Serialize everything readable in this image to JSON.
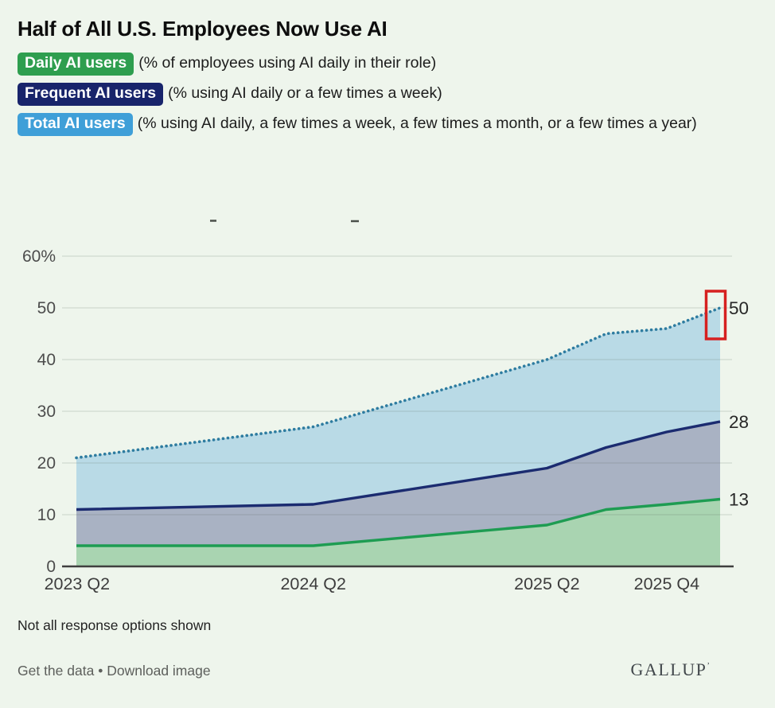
{
  "header": {
    "title": "Half of All U.S. Employees Now Use AI",
    "legend": [
      {
        "badge": "Daily AI users",
        "badge_color": "#2E9E4F",
        "description": "(% of employees using AI daily in their role)"
      },
      {
        "badge": "Frequent AI users",
        "badge_color": "#18246B",
        "description": "(% using AI daily or a few times a week)"
      },
      {
        "badge": "Total AI users",
        "badge_color": "#3F9FD8",
        "description": "(% using AI daily, a few times a week, a few times a month, or a few times a year)"
      }
    ]
  },
  "chart_data": {
    "type": "area",
    "title": "Half of All U.S. Employees Now Use AI",
    "x_tick_labels": [
      "2023 Q2",
      "2024 Q2",
      "2025 Q2",
      "2025 Q4"
    ],
    "y_ticks": [
      {
        "v": 0,
        "label": "0"
      },
      {
        "v": 10,
        "label": "10"
      },
      {
        "v": 20,
        "label": "20"
      },
      {
        "v": 30,
        "label": "30"
      },
      {
        "v": 40,
        "label": "40"
      },
      {
        "v": 50,
        "label": "50"
      },
      {
        "v": 60,
        "label": "60%"
      }
    ],
    "ylim": [
      0,
      60
    ],
    "grid": true,
    "legend_position": "top-badges",
    "series": [
      {
        "name": "Total AI users",
        "style": "dotted",
        "line_color": "#2E7CA0",
        "fill_color": "#B9DAE6",
        "values": [
          21,
          27,
          40,
          45,
          46,
          50
        ],
        "end_label": "50"
      },
      {
        "name": "Frequent AI users",
        "style": "solid",
        "line_color": "#1B2B70",
        "fill_color": "#A9B2C3",
        "values": [
          11,
          12,
          19,
          23,
          26,
          28
        ],
        "end_label": "28"
      },
      {
        "name": "Daily AI users",
        "style": "solid",
        "line_color": "#1E9C52",
        "fill_color": "#A9D4B1",
        "values": [
          4,
          4,
          8,
          11,
          12,
          13
        ],
        "end_label": "13"
      }
    ],
    "annotation": {
      "type": "highlight-box",
      "target": "last point of Total AI users",
      "value": 50,
      "color": "#D62020"
    }
  },
  "footnote": "Not all response options shown",
  "footer": {
    "link1": "Get the data",
    "separator": "•",
    "link2": "Download image",
    "logo": "GALLUP",
    "logo_mark": "’"
  }
}
